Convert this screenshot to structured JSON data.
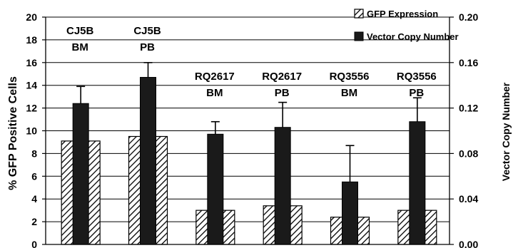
{
  "chart_data": {
    "type": "bar",
    "categories": [
      [
        "CJ5B",
        "BM"
      ],
      [
        "CJ5B",
        "PB"
      ],
      [
        "RQ2617",
        "BM"
      ],
      [
        "RQ2617",
        "PB"
      ],
      [
        "RQ3556",
        "BM"
      ],
      [
        "RQ3556",
        "PB"
      ]
    ],
    "ylabel": "% GFP Positive Cells",
    "y2label": "Vector Copy Number",
    "ylim": [
      0,
      20
    ],
    "y2lim": [
      0,
      0.2
    ],
    "yticks": [
      "0",
      "2",
      "4",
      "6",
      "8",
      "10",
      "12",
      "14",
      "16",
      "18",
      "20"
    ],
    "y2ticks": [
      "0.00",
      "0.04",
      "0.08",
      "0.12",
      "0.16",
      "0.20"
    ],
    "grid": true,
    "legend_position": "top-right",
    "series": [
      {
        "name": "GFP Expression",
        "axis": "left",
        "pattern": "hatched",
        "values": [
          9.1,
          9.5,
          3.0,
          3.4,
          2.4,
          3.0
        ]
      },
      {
        "name": "Vector Copy Number",
        "axis": "right",
        "pattern": "solid",
        "values": [
          0.124,
          0.147,
          0.097,
          0.103,
          0.055,
          0.108
        ],
        "error": [
          0.015,
          0.013,
          0.011,
          0.022,
          0.032,
          0.021
        ]
      }
    ]
  },
  "colors": {
    "bar_fill": "#1a1a1a",
    "hatch": "#000000",
    "grid": "#000000"
  }
}
